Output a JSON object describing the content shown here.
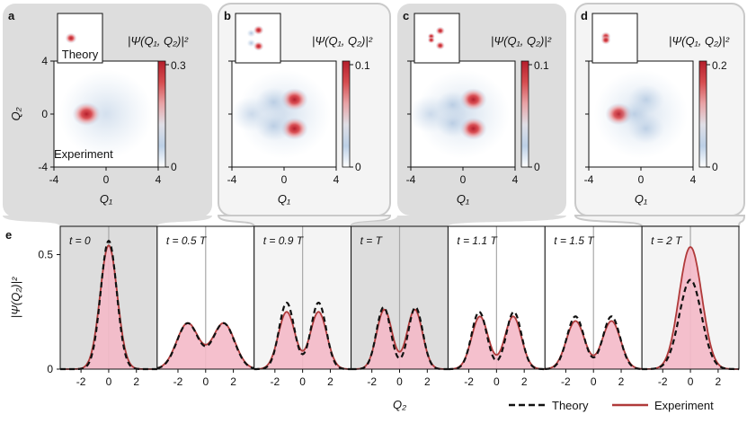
{
  "colors": {
    "dark_bg": "#dddddd",
    "light_bg": "#f4f4f4",
    "panel_border": "#c9c9c9",
    "fill_pink": "#f4b9c8",
    "experiment_line": "#b03a3a",
    "theory_line": "#111111",
    "colormap": [
      "#ffffff",
      "#bcd0e6",
      "#dfdfe6",
      "#e8a3a6",
      "#d64d50",
      "#b51e2b"
    ]
  },
  "top_panels": [
    {
      "letter": "a",
      "cbar_label": "|Ψ(Q₁, Q₂)|²",
      "cbar_max": "0.3",
      "cbar_min": "0",
      "theory_label": "Theory",
      "experiment_label": "Experiment",
      "theory_lobes": [
        [
          -1.6,
          0,
          0.95,
          1.0
        ]
      ],
      "exp_lobes": [
        [
          -1.5,
          0,
          0.95,
          1.0
        ]
      ]
    },
    {
      "letter": "b",
      "cbar_label": "|Ψ(Q₁, Q₂)|²",
      "cbar_max": "0.1",
      "cbar_min": "0",
      "theory_lobes": [
        [
          0.1,
          1.3,
          0.85,
          0.9
        ],
        [
          0.1,
          -1.3,
          0.85,
          0.9
        ],
        [
          -1.2,
          0.8,
          0.7,
          0.4
        ],
        [
          -1.2,
          -0.8,
          0.7,
          0.4
        ]
      ],
      "exp_lobes": [
        [
          0.8,
          1.1,
          0.9,
          0.85
        ],
        [
          0.8,
          -1.1,
          0.9,
          0.85
        ],
        [
          -0.8,
          0.9,
          1.2,
          0.35
        ],
        [
          -0.8,
          -0.9,
          1.2,
          0.35
        ],
        [
          -2.5,
          0,
          1.4,
          0.2
        ]
      ]
    },
    {
      "letter": "c",
      "cbar_label": "|Ψ(Q₁, Q₂)|²",
      "cbar_max": "0.1",
      "cbar_min": "0",
      "theory_lobes": [
        [
          0.6,
          1.2,
          0.75,
          0.9
        ],
        [
          0.6,
          -1.2,
          0.75,
          0.9
        ],
        [
          -1.0,
          0.3,
          0.6,
          0.7
        ],
        [
          -1.0,
          -0.3,
          0.6,
          0.7
        ]
      ],
      "exp_lobes": [
        [
          0.8,
          1.1,
          0.9,
          0.85
        ],
        [
          0.8,
          -1.1,
          0.9,
          0.85
        ],
        [
          -0.8,
          0.7,
          1.1,
          0.35
        ],
        [
          -0.8,
          -0.7,
          1.1,
          0.35
        ],
        [
          -2.5,
          0,
          1.5,
          0.2
        ]
      ]
    },
    {
      "letter": "d",
      "cbar_label": "|Ψ(Q₁, Q₂)|²",
      "cbar_max": "0.2",
      "cbar_min": "0",
      "theory_lobes": [
        [
          -1.6,
          0.3,
          0.8,
          1.0
        ],
        [
          -1.6,
          -0.3,
          0.8,
          1.0
        ]
      ],
      "exp_lobes": [
        [
          -1.7,
          0,
          0.9,
          0.55
        ],
        [
          0.4,
          1.1,
          1.2,
          0.3
        ],
        [
          0.4,
          -1.1,
          1.2,
          0.3
        ],
        [
          -0.5,
          0,
          1.0,
          0.25
        ]
      ]
    }
  ],
  "top_axes": {
    "ylabel": "Q₂",
    "xlabel": "Q₁",
    "y_ticks": [
      "4",
      "0",
      "-4"
    ],
    "x_ticks": [
      "-4",
      "0",
      "4"
    ]
  },
  "bottom": {
    "panel_letter": "e",
    "ylabel": "|Ψ(Q₂)|²",
    "xlabel": "Q₂",
    "y_ticks": [
      "0.5",
      "0"
    ],
    "x_ticks": [
      "-2",
      "0",
      "2"
    ],
    "legend": {
      "theory": "Theory",
      "experiment": "Experiment"
    }
  },
  "chart_data": {
    "type": "area",
    "title": "",
    "xlabel": "Q₂",
    "ylabel": "|Ψ(Q₂)|²",
    "xlim": [
      -3.5,
      3.5
    ],
    "ylim": [
      0,
      0.6
    ],
    "x_ticks": [
      -2,
      0,
      2
    ],
    "y_ticks": [
      0,
      0.5
    ],
    "series": [
      {
        "name": "t = 0",
        "theory": [
          {
            "a": 0.56,
            "c": 0,
            "s": 0.58
          }
        ],
        "experiment": [
          {
            "a": 0.54,
            "c": 0,
            "s": 0.62
          }
        ]
      },
      {
        "name": "t = 0.5 T",
        "theory": [
          {
            "a": 0.2,
            "c": -1.3,
            "s": 0.78
          },
          {
            "a": 0.2,
            "c": 1.3,
            "s": 0.78
          }
        ],
        "experiment": [
          {
            "a": 0.2,
            "c": -1.3,
            "s": 0.8
          },
          {
            "a": 0.2,
            "c": 1.3,
            "s": 0.8
          }
        ]
      },
      {
        "name": "t = 0.9 T",
        "theory": [
          {
            "a": 0.29,
            "c": -1.15,
            "s": 0.55
          },
          {
            "a": 0.29,
            "c": 1.15,
            "s": 0.55
          }
        ],
        "experiment": [
          {
            "a": 0.25,
            "c": -1.15,
            "s": 0.6
          },
          {
            "a": 0.25,
            "c": 1.15,
            "s": 0.6
          }
        ]
      },
      {
        "name": "t = T",
        "theory": [
          {
            "a": 0.27,
            "c": -1.15,
            "s": 0.52
          },
          {
            "a": 0.27,
            "c": 1.15,
            "s": 0.52
          }
        ],
        "experiment": [
          {
            "a": 0.26,
            "c": -1.1,
            "s": 0.56
          },
          {
            "a": 0.26,
            "c": 1.1,
            "s": 0.56
          }
        ]
      },
      {
        "name": "t = 1.1 T",
        "theory": [
          {
            "a": 0.25,
            "c": -1.25,
            "s": 0.55
          },
          {
            "a": 0.25,
            "c": 1.25,
            "s": 0.55
          }
        ],
        "experiment": [
          {
            "a": 0.23,
            "c": -1.2,
            "s": 0.6
          },
          {
            "a": 0.23,
            "c": 1.2,
            "s": 0.6
          }
        ]
      },
      {
        "name": "t = 1.5 T",
        "theory": [
          {
            "a": 0.23,
            "c": -1.3,
            "s": 0.62
          },
          {
            "a": 0.23,
            "c": 1.3,
            "s": 0.62
          }
        ],
        "experiment": [
          {
            "a": 0.21,
            "c": -1.3,
            "s": 0.66
          },
          {
            "a": 0.21,
            "c": 1.3,
            "s": 0.66
          }
        ]
      },
      {
        "name": "t = 2 T",
        "theory": [
          {
            "a": 0.39,
            "c": 0,
            "s": 0.8
          }
        ],
        "experiment": [
          {
            "a": 0.3,
            "c": -0.35,
            "s": 0.72
          },
          {
            "a": 0.3,
            "c": 0.35,
            "s": 0.72
          }
        ]
      }
    ],
    "subplot_shading": [
      "dark",
      "white",
      "light",
      "dark",
      "white",
      "white",
      "light"
    ],
    "legend": [
      "Theory",
      "Experiment"
    ]
  }
}
